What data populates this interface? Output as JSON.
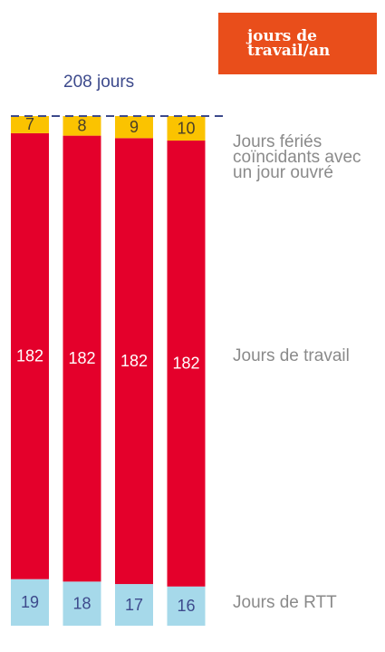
{
  "chart_data": {
    "type": "stacked_bar",
    "title": "jours de travail/an",
    "categories": [
      null,
      null,
      null,
      null
    ],
    "series": [
      {
        "name": "Jours de RTT",
        "color": "#a6d9ea",
        "label_color": "#3d4a8c",
        "values": [
          19,
          18,
          17,
          16
        ]
      },
      {
        "name": "Jours de travail",
        "color": "#e4002b",
        "label_color": "#ffffff",
        "values": [
          182,
          182,
          182,
          182
        ]
      },
      {
        "name": "Jours fériés coïncidants avec un jour ouvré",
        "color": "#fbc300",
        "label_color": "#4a3f2a",
        "values": [
          7,
          8,
          9,
          10
        ]
      }
    ],
    "reference_line": {
      "value": 208,
      "label": "208 jours",
      "color": "#3d4a8c"
    },
    "ylim": [
      0,
      208
    ]
  }
}
